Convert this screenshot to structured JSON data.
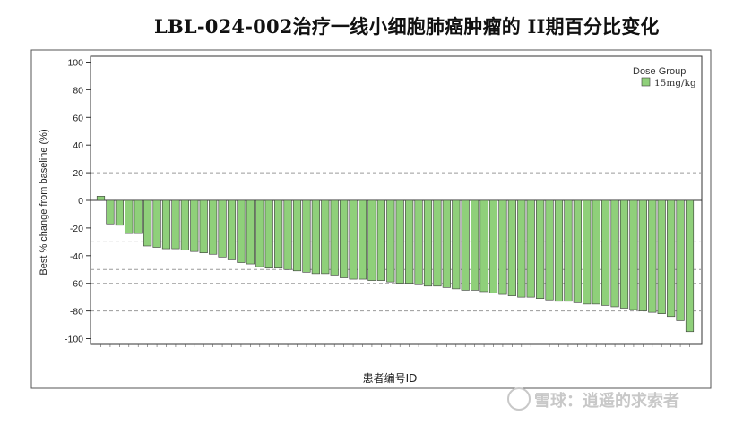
{
  "title": "LBL-024-002治疗一线小细胞肺癌肿瘤的 II期百分比变化",
  "watermark": "雪球：逍遥的求索者",
  "chart_data": {
    "type": "bar",
    "ylabel": "Best % change from baseline (%)",
    "xlabel": "患者编号ID",
    "ylim": [
      -100,
      100
    ],
    "yticks": [
      -100,
      -80,
      -60,
      -40,
      -20,
      0,
      20,
      40,
      60,
      80,
      100
    ],
    "reference_lines": [
      20,
      -30,
      -50,
      -60,
      -80
    ],
    "legend": {
      "title": "Dose Group",
      "entries": [
        "15mg/kg"
      ],
      "position": "top-right"
    },
    "bar_color": "#8fd07a",
    "values": [
      3,
      -17,
      -18,
      -24,
      -24,
      -33,
      -34,
      -35,
      -35,
      -36,
      -37,
      -38,
      -39,
      -41,
      -43,
      -45,
      -46,
      -48,
      -49,
      -49,
      -50,
      -51,
      -52,
      -53,
      -53,
      -54,
      -56,
      -57,
      -57,
      -58,
      -58,
      -59,
      -60,
      -60,
      -61,
      -62,
      -62,
      -63,
      -64,
      -65,
      -65,
      -66,
      -67,
      -68,
      -69,
      -70,
      -70,
      -71,
      -72,
      -73,
      -73,
      -74,
      -75,
      -75,
      -76,
      -77,
      -78,
      -79,
      -80,
      -81,
      -82,
      -84,
      -87,
      -95
    ]
  }
}
